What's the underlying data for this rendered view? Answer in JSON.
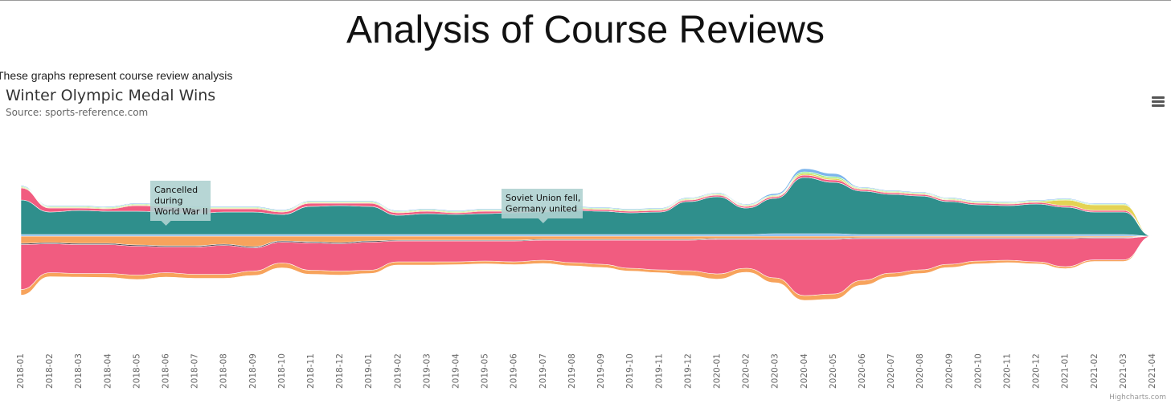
{
  "page": {
    "title": "Analysis of Course Reviews",
    "intro": "These graphs represent course review analysis"
  },
  "chart_menu_icon": "hamburger-menu-icon",
  "credits": "Highcharts.com",
  "chart_data": {
    "type": "streamgraph",
    "title": "Winter Olympic Medal Wins",
    "subtitle": "Source: sports-reference.com",
    "categories": [
      "2018-01",
      "2018-02",
      "2018-03",
      "2018-04",
      "2018-05",
      "2018-06",
      "2018-07",
      "2018-08",
      "2018-09",
      "2018-10",
      "2018-11",
      "2018-12",
      "2019-01",
      "2019-02",
      "2019-03",
      "2019-04",
      "2019-05",
      "2019-06",
      "2019-07",
      "2019-08",
      "2019-09",
      "2019-10",
      "2019-11",
      "2019-12",
      "2020-01",
      "2020-02",
      "2020-03",
      "2020-04",
      "2020-05",
      "2020-06",
      "2020-07",
      "2020-08",
      "2020-09",
      "2020-10",
      "2020-11",
      "2020-12",
      "2021-01",
      "2021-02",
      "2021-03",
      "2021-04"
    ],
    "annotations": [
      {
        "text": [
          "Cancelled",
          "during",
          "World War II"
        ],
        "category": "2018-06"
      },
      {
        "text": [
          "Soviet Union fell,",
          "Germany united"
        ],
        "category": "2019-07"
      }
    ],
    "series": [
      {
        "color": "#f7a35c",
        "values": [
          14,
          10,
          9,
          10,
          11,
          11,
          10,
          10,
          11,
          12,
          10,
          10,
          8,
          8,
          8,
          7,
          7,
          7,
          8,
          8,
          8,
          7,
          7,
          12,
          13,
          10,
          12,
          12,
          13,
          12,
          10,
          9,
          8,
          7,
          6,
          5,
          5,
          4,
          4,
          0
        ]
      },
      {
        "color": "#f15c80",
        "values": [
          112,
          72,
          72,
          72,
          72,
          64,
          68,
          72,
          58,
          52,
          68,
          68,
          70,
          52,
          52,
          52,
          50,
          52,
          50,
          56,
          60,
          70,
          74,
          76,
          86,
          72,
          96,
          140,
          136,
          104,
          86,
          78,
          64,
          56,
          54,
          58,
          70,
          54,
          54,
          0
        ]
      },
      {
        "color": "#434348",
        "values": [
          3,
          3,
          3,
          3,
          3,
          3,
          3,
          3,
          3,
          3,
          3,
          3,
          3,
          2,
          2,
          2,
          2,
          2,
          2,
          2,
          2,
          2,
          2,
          2,
          2,
          2,
          2,
          2,
          2,
          2,
          2,
          2,
          2,
          2,
          2,
          2,
          2,
          2,
          2,
          0
        ]
      },
      {
        "color": "#f7a35c",
        "values": [
          18,
          16,
          18,
          18,
          22,
          24,
          24,
          20,
          26,
          12,
          14,
          16,
          12,
          10,
          10,
          10,
          10,
          10,
          8,
          8,
          8,
          8,
          8,
          8,
          6,
          6,
          6,
          6,
          6,
          4,
          4,
          4,
          4,
          4,
          4,
          4,
          4,
          3,
          3,
          0
        ]
      },
      {
        "color": "#7cb5ec",
        "values": [
          4,
          4,
          4,
          4,
          4,
          4,
          4,
          4,
          4,
          4,
          4,
          4,
          4,
          4,
          4,
          4,
          4,
          4,
          4,
          4,
          4,
          4,
          4,
          4,
          4,
          4,
          6,
          6,
          6,
          4,
          4,
          4,
          4,
          4,
          4,
          4,
          4,
          4,
          4,
          0
        ]
      },
      {
        "color": "#2f8f8c",
        "values": [
          86,
          56,
          60,
          58,
          58,
          56,
          52,
          56,
          56,
          50,
          70,
          72,
          70,
          48,
          52,
          50,
          52,
          54,
          56,
          60,
          58,
          54,
          56,
          82,
          94,
          66,
          88,
          140,
          128,
          108,
          100,
          96,
          82,
          74,
          72,
          76,
          68,
          56,
          56,
          0
        ]
      },
      {
        "color": "#f15c80",
        "values": [
          30,
          10,
          6,
          6,
          14,
          14,
          12,
          8,
          8,
          6,
          8,
          6,
          8,
          6,
          6,
          4,
          6,
          4,
          4,
          4,
          4,
          4,
          4,
          4,
          4,
          4,
          4,
          6,
          6,
          4,
          4,
          4,
          4,
          4,
          4,
          4,
          4,
          4,
          4,
          0
        ]
      },
      {
        "color": "#e4d354",
        "values": [
          2,
          2,
          2,
          2,
          2,
          2,
          2,
          2,
          2,
          2,
          2,
          2,
          2,
          2,
          2,
          2,
          2,
          2,
          2,
          2,
          2,
          2,
          2,
          2,
          2,
          2,
          2,
          4,
          4,
          2,
          2,
          2,
          2,
          2,
          2,
          2,
          14,
          14,
          14,
          0
        ]
      },
      {
        "color": "#90ed7d",
        "values": [
          2,
          2,
          2,
          2,
          2,
          2,
          2,
          2,
          2,
          2,
          2,
          2,
          2,
          2,
          2,
          2,
          2,
          2,
          2,
          2,
          2,
          2,
          2,
          2,
          2,
          2,
          2,
          4,
          4,
          2,
          2,
          2,
          2,
          2,
          2,
          2,
          2,
          2,
          2,
          0
        ]
      },
      {
        "color": "#7cb5ec",
        "values": [
          2,
          2,
          2,
          2,
          2,
          2,
          2,
          2,
          2,
          2,
          2,
          2,
          2,
          2,
          2,
          2,
          2,
          2,
          2,
          2,
          2,
          2,
          2,
          2,
          2,
          2,
          4,
          8,
          8,
          2,
          2,
          2,
          2,
          2,
          2,
          2,
          2,
          2,
          2,
          0
        ]
      }
    ]
  }
}
